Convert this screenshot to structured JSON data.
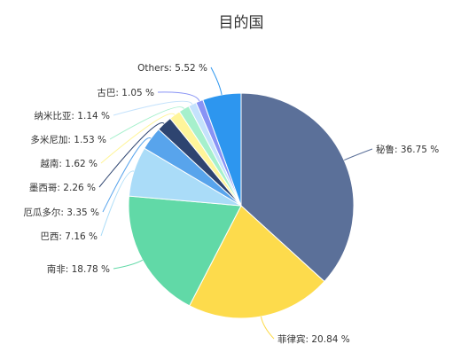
{
  "chart_data": {
    "type": "pie",
    "title": "目的国",
    "unit": "%",
    "slices": [
      {
        "name": "秘鲁",
        "value": 36.75,
        "label": "秘鲁: 36.75 %",
        "color": "#5b7099"
      },
      {
        "name": "菲律宾",
        "value": 20.84,
        "label": "菲律宾: 20.84 %",
        "color": "#fddb4c"
      },
      {
        "name": "南非",
        "value": 18.78,
        "label": "南非: 18.78 %",
        "color": "#61d9a7"
      },
      {
        "name": "巴西",
        "value": 7.16,
        "label": "巴西: 7.16 %",
        "color": "#aadcf8"
      },
      {
        "name": "厄瓜多尔",
        "value": 3.35,
        "label": "厄瓜多尔: 3.35 %",
        "color": "#58a4ec"
      },
      {
        "name": "墨西哥",
        "value": 2.26,
        "label": "墨西哥: 2.26 %",
        "color": "#2e4470"
      },
      {
        "name": "越南",
        "value": 1.62,
        "label": "越南: 1.62 %",
        "color": "#fff59a"
      },
      {
        "name": "多米尼加",
        "value": 1.53,
        "label": "多米尼加: 1.53 %",
        "color": "#a6f0cc"
      },
      {
        "name": "纳米比亚",
        "value": 1.14,
        "label": "纳米比亚: 1.14 %",
        "color": "#c4e2fc"
      },
      {
        "name": "古巴",
        "value": 1.05,
        "label": "古巴: 1.05 %",
        "color": "#8893f5"
      },
      {
        "name": "Others",
        "value": 5.52,
        "label": "Others: 5.52 %",
        "color": "#f5a56a"
      }
    ],
    "others_color": "#2d96ef"
  }
}
